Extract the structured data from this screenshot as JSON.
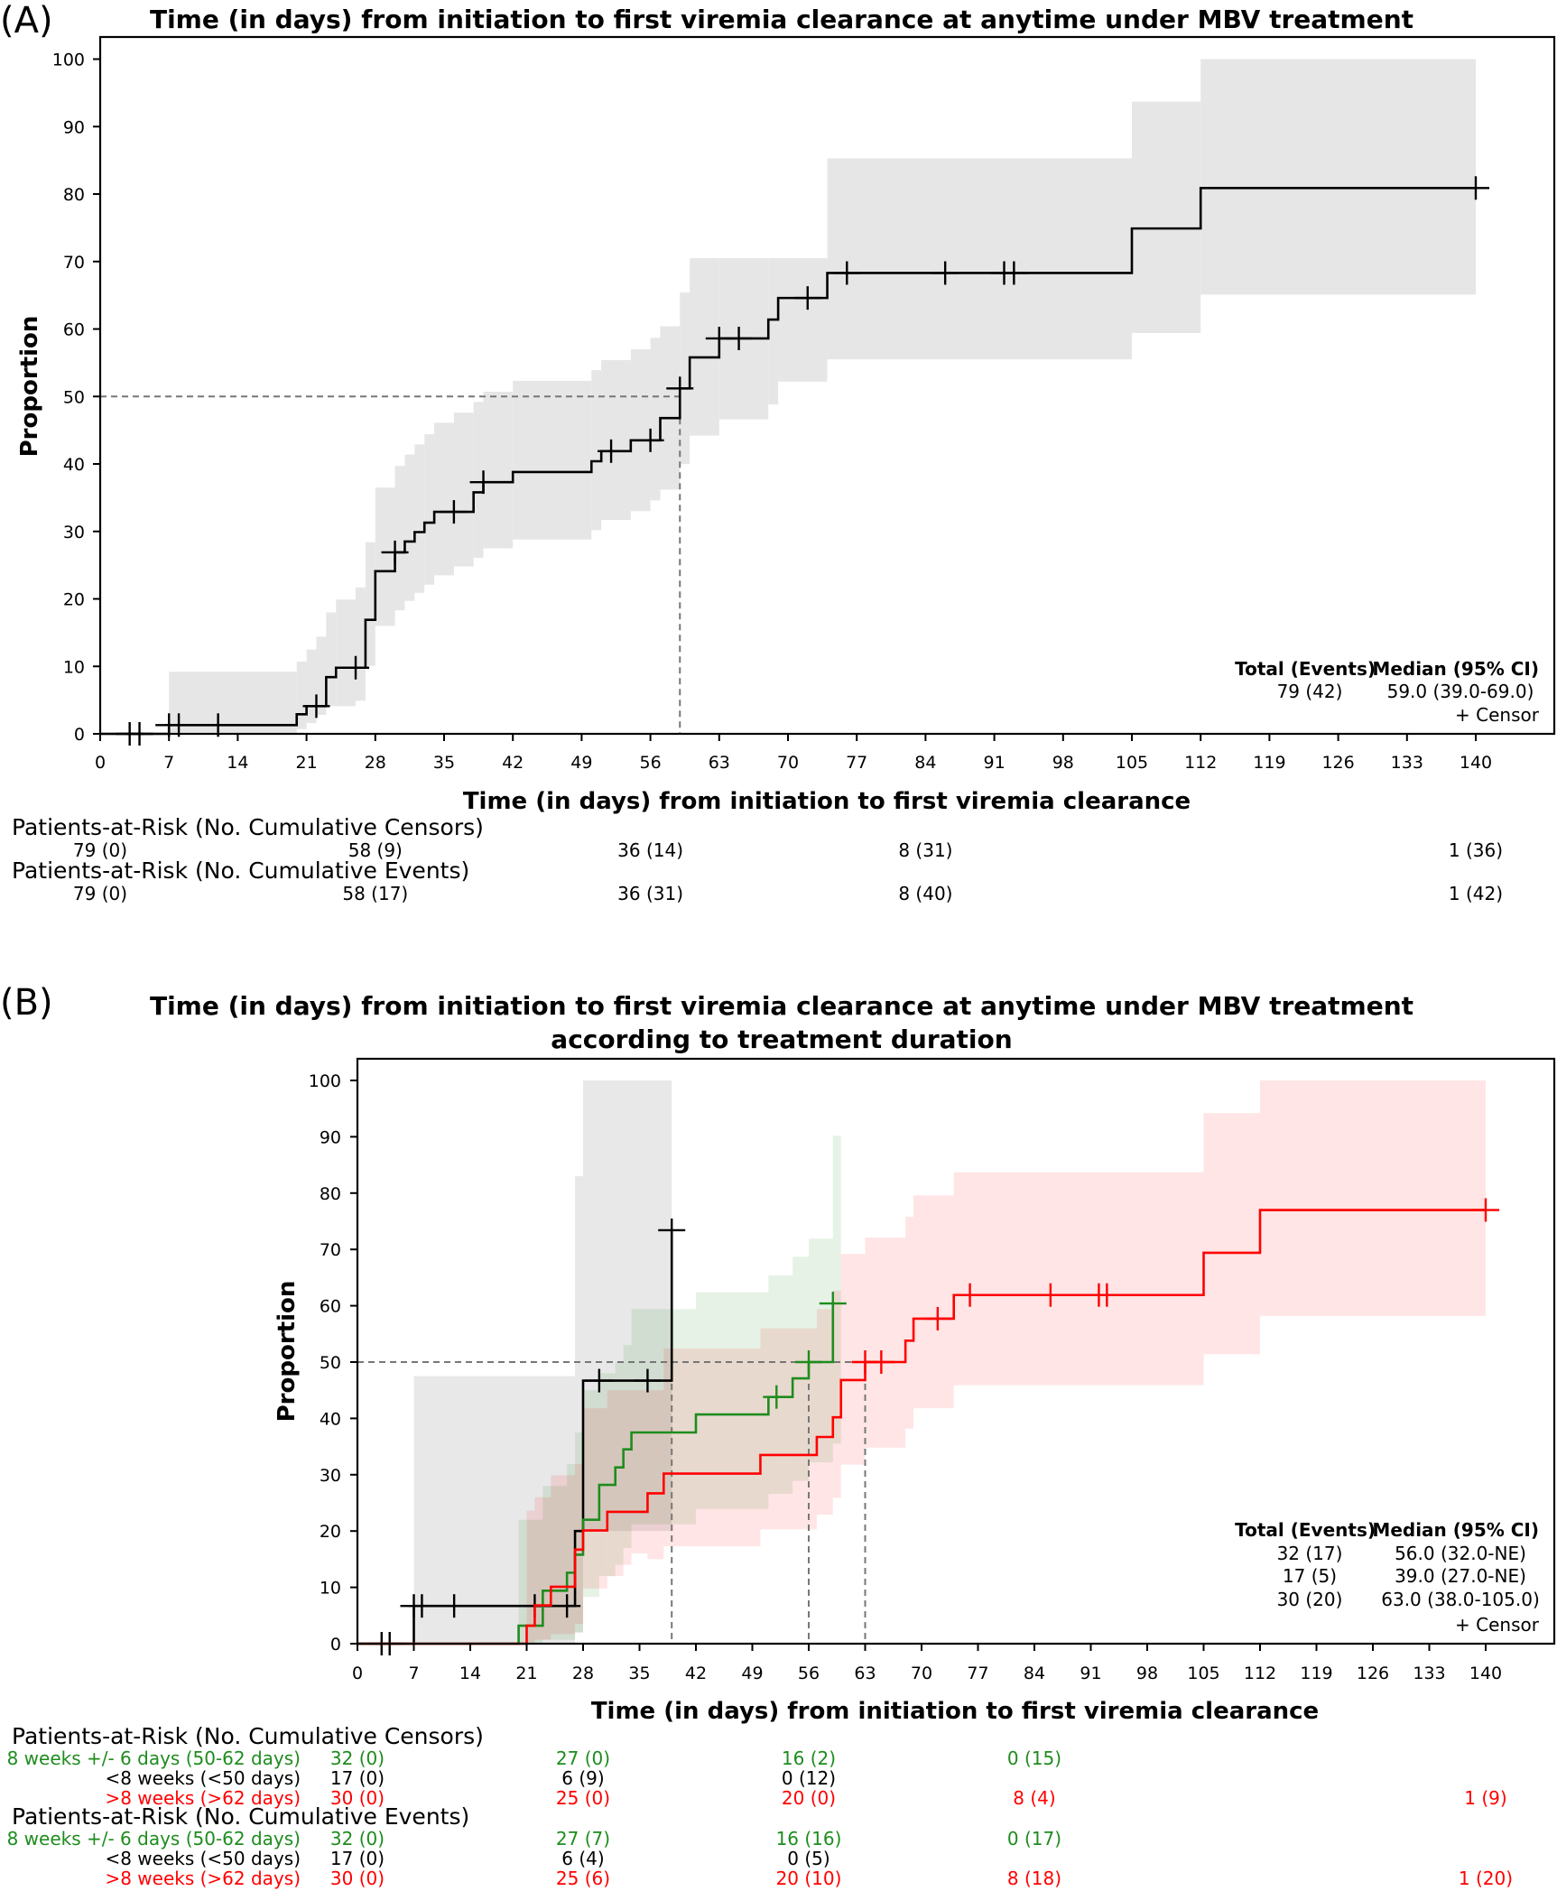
{
  "panel_a": {
    "label": "(A)",
    "legend": {
      "header_total": "Total (Events)",
      "header_median": "Median (95% CI)",
      "rows": [
        {
          "total": "79 (42)",
          "median": "59.0 (39.0-69.0)"
        }
      ],
      "censor": "+ Censor"
    },
    "at_risk": [
      {
        "header": "Patients-at-Risk (No. Cumulative Censors)",
        "rows": [
          {
            "label": "",
            "color": "#000000",
            "values": [
              "79 (0)",
              "58 (9)",
              "36 (14)",
              "8 (31)",
              "",
              "1 (36)"
            ]
          }
        ]
      },
      {
        "header": "Patients-at-Risk (No. Cumulative Events)",
        "rows": [
          {
            "label": "",
            "color": "#000000",
            "values": [
              "79 (0)",
              "58 (17)",
              "36 (31)",
              "8 (40)",
              "",
              "1 (42)"
            ]
          }
        ]
      }
    ]
  },
  "panel_b": {
    "label": "(B)",
    "legend": {
      "header_total": "Total (Events)",
      "header_median": "Median (95% CI)",
      "rows": [
        {
          "total": "32 (17)",
          "median": "56.0 (32.0-NE)"
        },
        {
          "total": "17 (5)",
          "median": "39.0 (27.0-NE)"
        },
        {
          "total": "30 (20)",
          "median": "63.0 (38.0-105.0)"
        }
      ],
      "censor": "+ Censor"
    },
    "at_risk": [
      {
        "header": "Patients-at-Risk (No. Cumulative Censors)",
        "rows": [
          {
            "label": "8 weeks +/- 6 days (50-62 days)",
            "color": "#1e8c1e",
            "values": [
              "32 (0)",
              "27 (0)",
              "16 (2)",
              "0 (15)",
              "",
              ""
            ]
          },
          {
            "label": "<8 weeks (<50 days)",
            "color": "#000000",
            "values": [
              "17 (0)",
              "6 (9)",
              "0 (12)",
              "",
              "",
              ""
            ]
          },
          {
            "label": ">8 weeks (>62 days)",
            "color": "#ff0000",
            "values": [
              "30 (0)",
              "25 (0)",
              "20 (0)",
              "8 (4)",
              "",
              "1 (9)"
            ]
          }
        ]
      },
      {
        "header": "Patients-at-Risk (No. Cumulative Events)",
        "rows": [
          {
            "label": "8 weeks +/- 6 days (50-62 days)",
            "color": "#1e8c1e",
            "values": [
              "32 (0)",
              "27 (7)",
              "16 (16)",
              "0 (17)",
              "",
              ""
            ]
          },
          {
            "label": "<8 weeks (<50 days)",
            "color": "#000000",
            "values": [
              "17 (0)",
              "6 (4)",
              "0 (5)",
              "",
              "",
              ""
            ]
          },
          {
            "label": ">8 weeks (>62 days)",
            "color": "#ff0000",
            "values": [
              "30 (0)",
              "25 (6)",
              "20 (10)",
              "8 (18)",
              "",
              "1 (20)"
            ]
          }
        ]
      }
    ]
  },
  "at_risk_days": [
    0,
    28,
    56,
    84,
    112,
    140
  ],
  "chart_data": [
    {
      "type": "line",
      "subtype": "kaplan-meier step",
      "title": "Time (in days) from initiation to first viremia clearance at anytime under MBV treatment",
      "title_line2": "",
      "xlabel": "Time (in days) from initiation to first viremia clearance",
      "ylabel": "Proportion",
      "xlim": [
        0,
        140
      ],
      "ylim": [
        0,
        100
      ],
      "xticks": [
        0,
        7,
        14,
        21,
        28,
        35,
        42,
        49,
        56,
        63,
        70,
        77,
        84,
        91,
        98,
        105,
        112,
        119,
        126,
        133,
        140
      ],
      "yticks": [
        0,
        10,
        20,
        30,
        40,
        50,
        60,
        70,
        80,
        90,
        100
      ],
      "grid": false,
      "legend_position": "bottom-right",
      "median_reference": {
        "value": 50,
        "days": [
          59
        ]
      },
      "series": [
        {
          "color": "#000000",
          "band_color": "#e6e6e6",
          "band_opacity": 1,
          "end": 140,
          "steps": [
            [
              0,
              0
            ],
            [
              7,
              1.3
            ],
            [
              20,
              2.9
            ],
            [
              21,
              4.1
            ],
            [
              23,
              8.4
            ],
            [
              24,
              9.8
            ],
            [
              27,
              16.9
            ],
            [
              28,
              24.1
            ],
            [
              30,
              26.9
            ],
            [
              31,
              28.5
            ],
            [
              32,
              29.9
            ],
            [
              33,
              31.3
            ],
            [
              34,
              32.9
            ],
            [
              38,
              35.8
            ],
            [
              39,
              37.3
            ],
            [
              42,
              38.8
            ],
            [
              50,
              40.4
            ],
            [
              51,
              41.9
            ],
            [
              54,
              43.5
            ],
            [
              57,
              46.8
            ],
            [
              59,
              51.2
            ],
            [
              60,
              55.8
            ],
            [
              63,
              58.6
            ],
            [
              68,
              61.4
            ],
            [
              69,
              64.6
            ],
            [
              74,
              68.3
            ],
            [
              105,
              74.9
            ],
            [
              112,
              80.9
            ]
          ],
          "censors": [
            3,
            4,
            7,
            8,
            12,
            22,
            26,
            30,
            36,
            39,
            52,
            56,
            59,
            63,
            65,
            72,
            76,
            86,
            92,
            93,
            140
          ],
          "ci": [
            [
              7,
              0,
              9.2
            ],
            [
              20,
              0.7,
              10.7
            ],
            [
              21,
              1.6,
              12.5
            ],
            [
              22,
              2.8,
              14.4
            ],
            [
              23,
              4.1,
              18
            ],
            [
              24,
              4.1,
              19.9
            ],
            [
              26,
              4.9,
              21.7
            ],
            [
              27,
              10.1,
              28.4
            ],
            [
              28,
              16,
              36.5
            ],
            [
              30,
              18.3,
              39.7
            ],
            [
              31,
              19.7,
              41.4
            ],
            [
              32,
              20.9,
              42.9
            ],
            [
              33,
              22.1,
              44.4
            ],
            [
              34,
              23.5,
              46.1
            ],
            [
              36,
              24.8,
              47.6
            ],
            [
              38,
              26.1,
              49.2
            ],
            [
              39,
              27.5,
              50.7
            ],
            [
              42,
              28.8,
              52.3
            ],
            [
              50,
              30.2,
              53.9
            ],
            [
              51,
              31.7,
              55.4
            ],
            [
              54,
              33,
              57
            ],
            [
              56,
              34.6,
              58.7
            ],
            [
              57,
              36.2,
              60.4
            ],
            [
              59,
              40,
              65.4
            ],
            [
              60,
              44.2,
              70.5
            ],
            [
              63,
              46.6,
              70.5
            ],
            [
              68,
              48.8,
              70.5
            ],
            [
              69,
              52.2,
              70.5
            ],
            [
              74,
              55.5,
              85.3
            ],
            [
              105,
              59.4,
              93.7
            ],
            [
              112,
              65.1,
              100
            ]
          ]
        }
      ]
    },
    {
      "type": "line",
      "subtype": "kaplan-meier step",
      "title": "Time (in days) from initiation to first viremia clearance at anytime under MBV treatment",
      "title_line2": "according to treatment duration",
      "xlabel": "Time (in days) from initiation to first viremia clearance",
      "ylabel": "Proportion",
      "xlim": [
        0,
        140
      ],
      "ylim": [
        0,
        100
      ],
      "xticks": [
        0,
        7,
        14,
        21,
        28,
        35,
        42,
        49,
        56,
        63,
        70,
        77,
        84,
        91,
        98,
        105,
        112,
        119,
        126,
        133,
        140
      ],
      "yticks": [
        0,
        10,
        20,
        30,
        40,
        50,
        60,
        70,
        80,
        90,
        100
      ],
      "grid": false,
      "legend_position": "bottom-right",
      "median_reference": {
        "value": 50,
        "days": [
          39,
          56,
          63
        ]
      },
      "series": [
        {
          "name": "<8 weeks (<50 days)",
          "color": "#000000",
          "band_color": "#808080",
          "band_opacity": 0.18,
          "end": 39,
          "steps": [
            [
              0,
              0
            ],
            [
              7,
              6.7
            ],
            [
              27,
              20
            ],
            [
              28,
              46.7
            ],
            [
              39,
              73.4
            ]
          ],
          "censors": [
            3,
            4,
            7,
            8,
            12,
            22,
            26,
            30,
            36,
            39
          ],
          "ci": [
            [
              7,
              0,
              47.5
            ],
            [
              27,
              2,
              83
            ],
            [
              28,
              20,
              100
            ]
          ]
        },
        {
          "name": "8 weeks +/- 6 days (50-62 days)",
          "color": "#1e8c1e",
          "band_color": "#1e8c1e",
          "band_opacity": 0.11,
          "end": 59,
          "band_end": 60,
          "steps": [
            [
              0,
              0
            ],
            [
              20,
              3.2
            ],
            [
              23,
              9.4
            ],
            [
              26,
              12.6
            ],
            [
              27,
              15.8
            ],
            [
              28,
              22
            ],
            [
              30,
              28.2
            ],
            [
              32,
              31.3
            ],
            [
              33,
              34.5
            ],
            [
              34,
              37.5
            ],
            [
              42,
              40.7
            ],
            [
              51,
              43.8
            ],
            [
              54,
              47.1
            ],
            [
              56,
              50
            ],
            [
              59,
              60.4
            ]
          ],
          "censors": [
            52,
            56,
            59
          ],
          "ci": [
            [
              20,
              0,
              22
            ],
            [
              23,
              0.7,
              28
            ],
            [
              26,
              0.7,
              31.9
            ],
            [
              27,
              2,
              37.5
            ],
            [
              28,
              8.3,
              45
            ],
            [
              30,
              12,
              48
            ],
            [
              32,
              14,
              50
            ],
            [
              33,
              17,
              53
            ],
            [
              34,
              21.2,
              59.4
            ],
            [
              42,
              23.9,
              62.4
            ],
            [
              51,
              26.6,
              65.4
            ],
            [
              54,
              28.9,
              68.7
            ],
            [
              56,
              32.2,
              71.9
            ],
            [
              59,
              35.5,
              90.2
            ]
          ]
        },
        {
          "name": ">8 weeks (>62 days)",
          "color": "#ff0000",
          "band_color": "#ff0000",
          "band_opacity": 0.1,
          "end": 140,
          "steps": [
            [
              0,
              0
            ],
            [
              21,
              3.2
            ],
            [
              22,
              6.8
            ],
            [
              24,
              10.1
            ],
            [
              27,
              16.7
            ],
            [
              28,
              20.1
            ],
            [
              31,
              23.4
            ],
            [
              36,
              26.7
            ],
            [
              38,
              30.2
            ],
            [
              50,
              33.5
            ],
            [
              57,
              36.7
            ],
            [
              59,
              40.2
            ],
            [
              60,
              46.8
            ],
            [
              63,
              50
            ],
            [
              68,
              53.8
            ],
            [
              69,
              57.7
            ],
            [
              74,
              61.9
            ],
            [
              105,
              69.4
            ],
            [
              112,
              77
            ]
          ],
          "censors": [
            63,
            65,
            72,
            76,
            86,
            92,
            93,
            140
          ],
          "ci": [
            [
              21,
              0,
              23.6
            ],
            [
              22,
              0.7,
              26
            ],
            [
              24,
              1.7,
              29.9
            ],
            [
              27,
              3.5,
              31.9
            ],
            [
              28,
              9.8,
              41.8
            ],
            [
              31,
              12,
              45
            ],
            [
              33,
              14,
              45
            ],
            [
              34,
              16,
              45
            ],
            [
              36,
              15,
              45
            ],
            [
              38,
              17.3,
              52.4
            ],
            [
              50,
              20.3,
              56
            ],
            [
              57,
              22.9,
              59.4
            ],
            [
              59,
              25.9,
              62.7
            ],
            [
              60,
              31.8,
              69.2
            ],
            [
              63,
              34.8,
              72.1
            ],
            [
              68,
              38.2,
              75.8
            ],
            [
              69,
              41.8,
              79.6
            ],
            [
              74,
              45.9,
              83.7
            ],
            [
              105,
              51.4,
              94.2
            ],
            [
              112,
              58.2,
              100
            ]
          ]
        }
      ]
    }
  ]
}
